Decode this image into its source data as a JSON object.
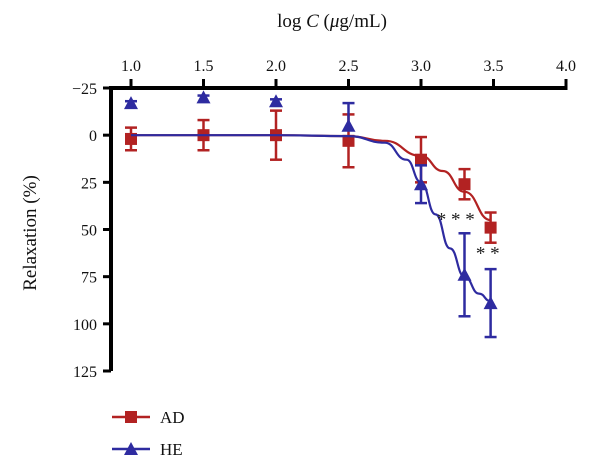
{
  "chart_data": {
    "type": "line",
    "xlabel_pre": "log ",
    "xlabel_var": "C",
    "xlabel_open": " (",
    "xlabel_mu": "μ",
    "xlabel_post": "g/mL)",
    "ylabel": "Relaxation (%)",
    "x_axis_position": "top",
    "y_axis_inverted": true,
    "xlim": [
      1.0,
      4.0
    ],
    "ylim": [
      -25,
      125
    ],
    "x_ticks": [
      "1.0",
      "1.5",
      "2.0",
      "2.5",
      "3.0",
      "3.5",
      "4.0"
    ],
    "y_ticks": [
      "−25",
      "0",
      "25",
      "50",
      "75",
      "100",
      "125"
    ],
    "x_tick_values": [
      1.0,
      1.5,
      2.0,
      2.5,
      3.0,
      3.5,
      4.0
    ],
    "y_tick_values": [
      -25,
      0,
      25,
      50,
      75,
      100,
      125
    ],
    "grid": false,
    "legend_position": "bottom-left",
    "series": [
      {
        "name": "AD",
        "color": "#b22222",
        "marker": "square",
        "x": [
          1.0,
          1.5,
          2.0,
          2.5,
          3.0,
          3.3,
          3.48
        ],
        "y": [
          2,
          0,
          0,
          3,
          13,
          26,
          49
        ],
        "err": [
          6,
          8,
          13,
          14,
          12,
          8,
          8
        ],
        "fit_x": [
          1.0,
          1.5,
          2.0,
          2.5,
          2.75,
          3.0,
          3.15,
          3.3,
          3.48
        ],
        "fit_y": [
          0,
          0,
          0,
          0.5,
          3,
          11,
          19,
          30,
          45
        ]
      },
      {
        "name": "HE",
        "color": "#2e2ba0",
        "marker": "triangle",
        "x": [
          1.0,
          1.5,
          2.0,
          2.5,
          3.0,
          3.3,
          3.48
        ],
        "y": [
          -17,
          -20,
          -18,
          -5,
          26,
          74,
          89
        ],
        "err": [
          0,
          0,
          0,
          0,
          10,
          22,
          18
        ],
        "err_up": [
          1,
          1,
          1,
          12,
          10,
          22,
          18
        ],
        "fit_x": [
          1.0,
          1.5,
          2.0,
          2.5,
          2.75,
          2.9,
          3.0,
          3.1,
          3.2,
          3.3,
          3.4,
          3.48
        ],
        "fit_y": [
          0,
          0,
          0,
          0.5,
          4,
          13,
          25,
          42,
          60,
          75,
          84,
          88
        ]
      }
    ],
    "annotations": [
      {
        "text": "* * *",
        "x": 3.24,
        "y": 48
      },
      {
        "text": "* *",
        "x": 3.46,
        "y": 66
      }
    ]
  }
}
